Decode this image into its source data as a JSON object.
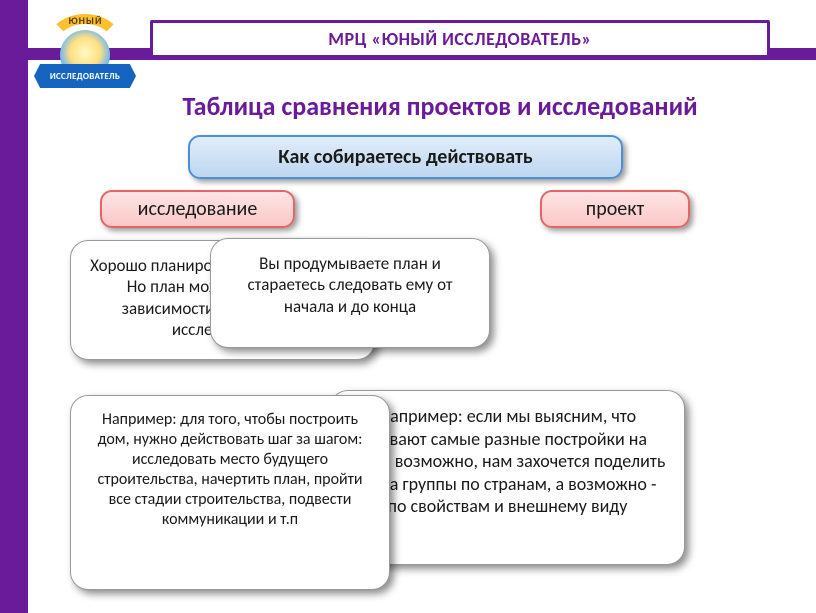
{
  "colors": {
    "purple": "#6a1b9a",
    "blue_pill_border": "#4a90d9",
    "blue_pill_bg_top": "#e1ecf9",
    "blue_pill_bg_bottom": "#bdd7f0",
    "pink_pill_border": "#e36666",
    "pink_pill_bg_top": "#fde4e4",
    "pink_pill_bg_bottom": "#fbc8c8",
    "shadow": "rgba(0,0,0,0.45)"
  },
  "logo": {
    "arc_text": "ЮНЫЙ",
    "ribbon_text": "ИССЛЕДОВАТЕЛЬ"
  },
  "header": "МРЦ «ЮНЫЙ ИССЛЕДОВАТЕЛЬ»",
  "title": "Таблица сравнения проектов и исследований",
  "question": "Как собираетесь действовать",
  "research_label": "исследование",
  "project_label": "проект",
  "bubble1": "Хорошо планировать свои действия. Но план может меняться в зависимости от результатов исследования",
  "bubble2": "Вы продумываете план и стараетесь следовать ему от начала и до конца",
  "bubble3": "Например: для того, чтобы построить дом, нужно действовать шаг за шагом: исследовать место будущего строительства, начертить план, пройти все стадии строительства, подвести коммуникации и т.п",
  "bubble4": "Например: если мы выясним, что бывают самые разные постройки на воде, возможно, нам захочется поделить их на группы по странам, а возможно - по свойствам и внешнему виду"
}
